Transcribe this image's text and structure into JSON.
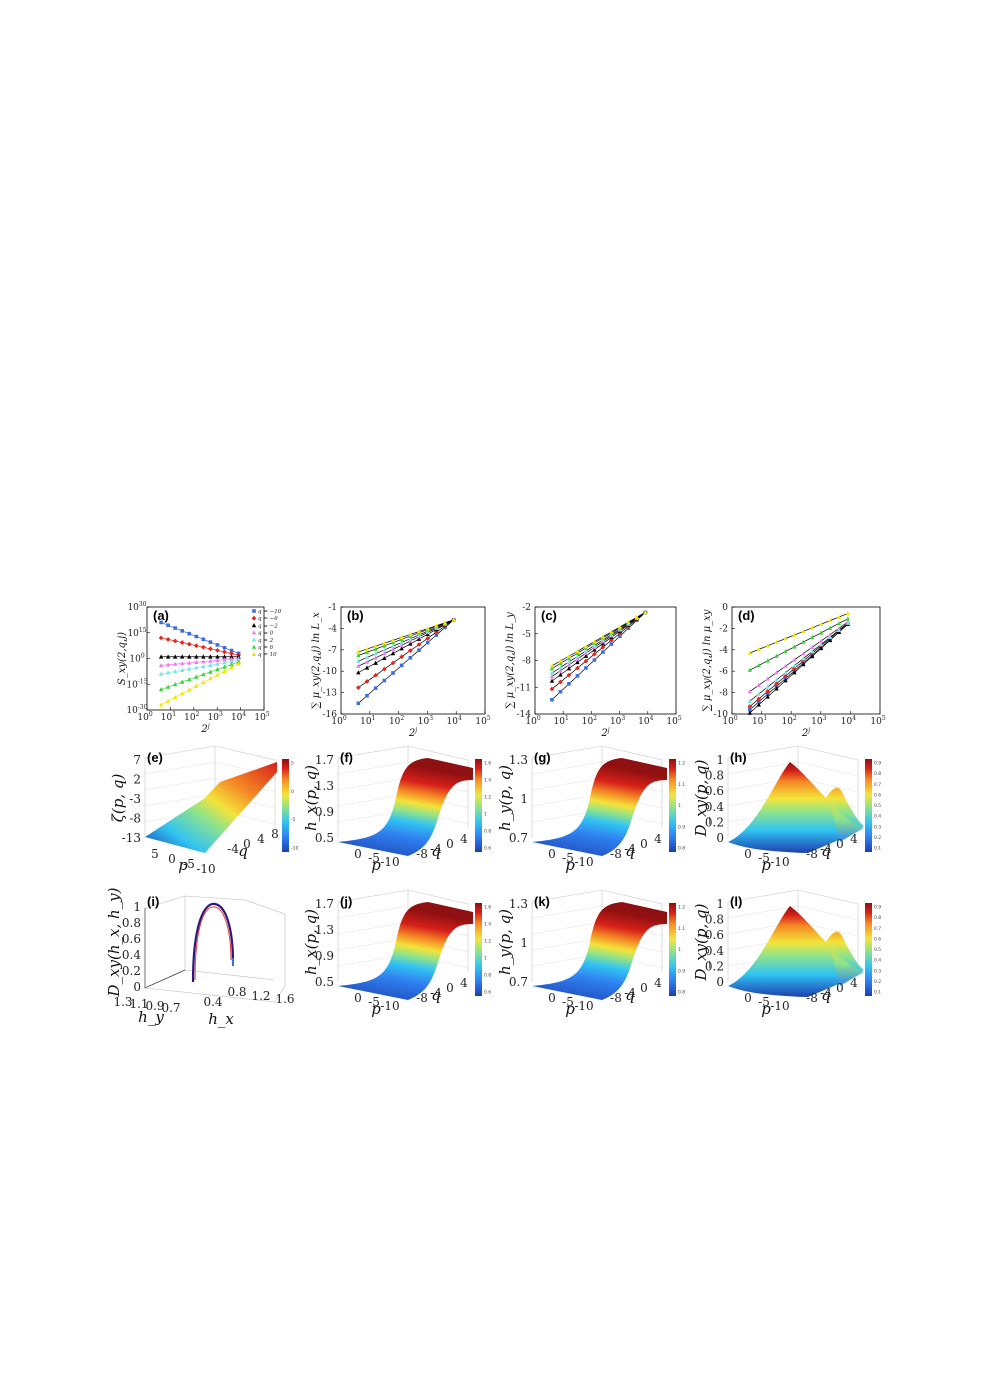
{
  "colors": {
    "q=-10": "#3b6fe0",
    "q=-6": "#e8281e",
    "q=-2": "#000000",
    "q=0": "#f07cf0",
    "q=2": "#7fe3e3",
    "q=6": "#3ad33a",
    "q=10": "#f5e400",
    "colormap": [
      "#1d3fb0",
      "#2f7ff0",
      "#31c4f2",
      "#8fe38a",
      "#f3e33a",
      "#f58a25",
      "#d7201a",
      "#8f1010"
    ]
  },
  "chart_data": [
    {
      "id": "a",
      "type": "line",
      "panel_label": "(a)",
      "ylabel": "S_xy(2,q,j)",
      "xlabel": "2^j",
      "xscale": "log",
      "xlim": [
        1,
        100000
      ],
      "xticks": [
        "10^0",
        "10^1",
        "10^2",
        "10^3",
        "10^4",
        "10^5"
      ],
      "yticks": [
        "10^30",
        "10^15",
        "10^0",
        "10^-15",
        "10^-30"
      ],
      "ylim_exponent": [
        -30,
        30
      ],
      "legend": [
        "q = −10",
        "q = −6",
        "q = −2",
        "q = 0",
        "q = 2",
        "q = 6",
        "q = 10"
      ],
      "legend_position": "top-right",
      "x": [
        4,
        8,
        16,
        32,
        64,
        128,
        256,
        512,
        1024,
        2048,
        4096,
        8192
      ],
      "series": [
        {
          "name": "q = −10",
          "y_from": 21,
          "y_to": 3
        },
        {
          "name": "q = −6",
          "y_from": 12,
          "y_to": 2
        },
        {
          "name": "q = −2",
          "y_from": 1,
          "y_to": 1
        },
        {
          "name": "q = 0",
          "y_from": -4,
          "y_to": 0
        },
        {
          "name": "q = 2",
          "y_from": -9,
          "y_to": -1
        },
        {
          "name": "q = 6",
          "y_from": -18,
          "y_to": -2
        },
        {
          "name": "q = 10",
          "y_from": -27,
          "y_to": -3
        }
      ]
    },
    {
      "id": "b",
      "type": "line",
      "panel_label": "(b)",
      "ylabel": "∑ μ_xy(2,q,j) ln L_x",
      "xlabel": "2^j",
      "xscale": "log",
      "xlim": [
        1,
        100000
      ],
      "ylim": [
        -16,
        -1
      ],
      "xticks": [
        "10^0",
        "10^1",
        "10^2",
        "10^3",
        "10^4",
        "10^5"
      ],
      "yticks": [
        "-1",
        "-4",
        "-7",
        "-10",
        "-13",
        "-16"
      ],
      "x": [
        4,
        8,
        16,
        32,
        64,
        128,
        256,
        512,
        1024,
        2048,
        4096,
        8192
      ],
      "end": -2.8,
      "series_start": {
        "q=-10": -14.5,
        "q=-6": -12.3,
        "q=-2": -10.2,
        "q=0": -9.3,
        "q=2": -8.6,
        "q=6": -7.8,
        "q=10": -7.3
      }
    },
    {
      "id": "c",
      "type": "line",
      "panel_label": "(c)",
      "ylabel": "∑ μ_xy(2,q,j) ln L_y",
      "xlabel": "2^j",
      "xscale": "log",
      "xlim": [
        1,
        100000
      ],
      "ylim": [
        -14,
        -2
      ],
      "xticks": [
        "10^0",
        "10^1",
        "10^2",
        "10^3",
        "10^4",
        "10^5"
      ],
      "yticks": [
        "-2",
        "-5",
        "-8",
        "-11",
        "-14"
      ],
      "x": [
        4,
        8,
        16,
        32,
        64,
        128,
        256,
        512,
        1024,
        2048,
        4096,
        8192
      ],
      "end": -2.6,
      "series_start": {
        "q=-10": -12.4,
        "q=-6": -11.2,
        "q=-2": -10.3,
        "q=0": -9.8,
        "q=2": -9.4,
        "q=6": -8.9,
        "q=10": -8.6
      }
    },
    {
      "id": "d",
      "type": "line",
      "panel_label": "(d)",
      "ylabel": "∑ μ_xy(2,q,j) ln μ_xy",
      "xlabel": "2^j",
      "xscale": "log",
      "xlim": [
        1,
        100000
      ],
      "ylim": [
        -10,
        0
      ],
      "xticks": [
        "10^0",
        "10^1",
        "10^2",
        "10^3",
        "10^4",
        "10^5"
      ],
      "yticks": [
        "0",
        "-2",
        "-4",
        "-6",
        "-8",
        "-10"
      ],
      "x": [
        4,
        8,
        16,
        32,
        64,
        128,
        256,
        512,
        1024,
        2048,
        4096,
        8192
      ],
      "series_start": {
        "q=-10": -9.6,
        "q=-6": -9.3,
        "q=-2": -9.9,
        "q=0": -7.9,
        "q=2": -8.8,
        "q=6": -5.9,
        "q=10": -4.3
      },
      "series_end": {
        "q=-10": -1.6,
        "q=-6": -1.5,
        "q=-2": -1.6,
        "q=0": -1.4,
        "q=2": -1.5,
        "q=6": -1.1,
        "q=10": -0.6
      }
    },
    {
      "id": "e",
      "type": "surface",
      "panel_label": "(e)",
      "zlabel": "ζ(p, q)",
      "zticks": [
        "7",
        "2",
        "-3",
        "-8",
        "-13"
      ],
      "pticks": [
        "10",
        "5",
        "0",
        "-5",
        "-10"
      ],
      "qticks": [
        "-4",
        "0",
        "4",
        "8"
      ],
      "xlabel": "p",
      "ylabel": "q",
      "shape": "ramp",
      "colorbar_ticks": [
        "5",
        "0",
        "-5",
        "-10"
      ]
    },
    {
      "id": "f",
      "type": "surface",
      "panel_label": "(f)",
      "zlabel": "h_x(p, q)",
      "zticks": [
        "1.7",
        "1.3",
        "0.9",
        "0.5"
      ],
      "pticks": [
        "10",
        "5",
        "0",
        "-5",
        "-10"
      ],
      "qticks": [
        "-8",
        "-4",
        "0",
        "4",
        "8"
      ],
      "xlabel": "p",
      "ylabel": "q",
      "shape": "sigmoid",
      "colorbar_ticks": [
        "1.6",
        "1.4",
        "1.2",
        "1",
        "0.8",
        "0.6"
      ]
    },
    {
      "id": "g",
      "type": "surface",
      "panel_label": "(g)",
      "zlabel": "h_y(p, q)",
      "zticks": [
        "1.3",
        "1",
        "0.7"
      ],
      "pticks": [
        "10",
        "5",
        "0",
        "-5",
        "-10"
      ],
      "qticks": [
        "-8",
        "-4",
        "0",
        "4",
        "8"
      ],
      "xlabel": "p",
      "ylabel": "q",
      "shape": "sigmoid",
      "colorbar_ticks": [
        "1.2",
        "1.1",
        "1",
        "0.9",
        "0.8"
      ]
    },
    {
      "id": "h",
      "type": "surface",
      "panel_label": "(h)",
      "zlabel": "D_xy(p, q)",
      "zticks": [
        "1",
        "0.8",
        "0.6",
        "0.4",
        "0.2",
        "0"
      ],
      "pticks": [
        "10",
        "5",
        "0",
        "-5",
        "-10"
      ],
      "qticks": [
        "-8",
        "-4",
        "0",
        "4",
        "8"
      ],
      "xlabel": "p",
      "ylabel": "q",
      "shape": "peak",
      "colorbar_ticks": [
        "0.9",
        "0.8",
        "0.7",
        "0.6",
        "0.5",
        "0.4",
        "0.3",
        "0.2",
        "0.1"
      ]
    },
    {
      "id": "i",
      "type": "line3d",
      "panel_label": "(i)",
      "zlabel": "D_xy(h_x, h_y)",
      "zticks": [
        "1",
        "0.8",
        "0.6",
        "0.4",
        "0.2",
        "0"
      ],
      "xlabel": "h_x",
      "ylabel": "h_y",
      "xticks": [
        "0.4",
        "0.8",
        "1.2",
        "1.6"
      ],
      "yticks": [
        "1.3",
        "1.1",
        "0.9",
        "0.7"
      ]
    },
    {
      "id": "j",
      "type": "surface",
      "panel_label": "(j)",
      "zlabel": "h_x(p, q)",
      "zticks": [
        "1.7",
        "1.3",
        "0.9",
        "0.5"
      ],
      "pticks": [
        "10",
        "5",
        "0",
        "-5",
        "-10"
      ],
      "qticks": [
        "-8",
        "-4",
        "0",
        "4",
        "8"
      ],
      "xlabel": "p",
      "ylabel": "q",
      "shape": "sigmoid",
      "colorbar_ticks": [
        "1.6",
        "1.4",
        "1.2",
        "1",
        "0.8",
        "0.6"
      ]
    },
    {
      "id": "k",
      "type": "surface",
      "panel_label": "(k)",
      "zlabel": "h_y(p, q)",
      "zticks": [
        "1.3",
        "1",
        "0.7"
      ],
      "pticks": [
        "10",
        "5",
        "0",
        "-5",
        "-10"
      ],
      "qticks": [
        "-8",
        "-4",
        "0",
        "4",
        "8"
      ],
      "xlabel": "p",
      "ylabel": "q",
      "shape": "sigmoid",
      "colorbar_ticks": [
        "1.2",
        "1.1",
        "1",
        "0.9",
        "0.8"
      ]
    },
    {
      "id": "l",
      "type": "surface",
      "panel_label": "(l)",
      "zlabel": "D_xy(p, q)",
      "zticks": [
        "1",
        "0.8",
        "0.6",
        "0.4",
        "0.2",
        "0"
      ],
      "pticks": [
        "10",
        "5",
        "0",
        "-5",
        "-10"
      ],
      "qticks": [
        "-8",
        "-4",
        "0",
        "4",
        "8"
      ],
      "xlabel": "p",
      "ylabel": "q",
      "shape": "peak",
      "colorbar_ticks": [
        "0.9",
        "0.8",
        "0.7",
        "0.6",
        "0.5",
        "0.4",
        "0.3",
        "0.2",
        "0.1"
      ]
    }
  ]
}
